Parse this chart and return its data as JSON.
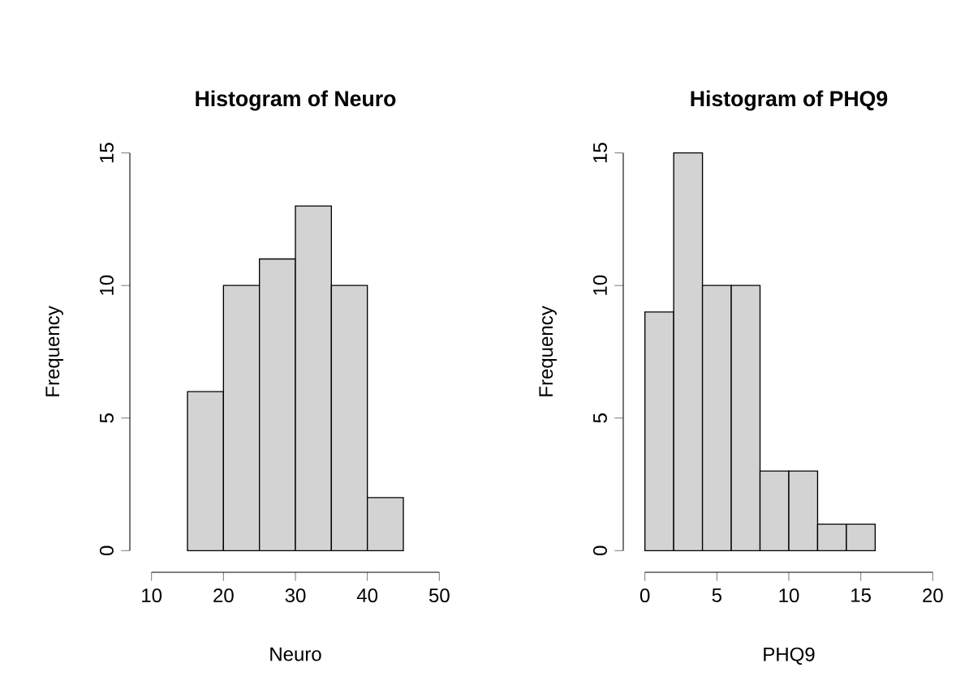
{
  "chart_data": [
    {
      "type": "histogram",
      "title": "Histogram of Neuro",
      "xlabel": "Neuro",
      "ylabel": "Frequency",
      "bins": [
        15,
        20,
        25,
        30,
        35,
        40,
        45
      ],
      "values": [
        6,
        10,
        11,
        13,
        10,
        2
      ],
      "color": "#d3d3d3",
      "xlim": [
        10,
        50
      ],
      "ylim": [
        0,
        15
      ],
      "xticks": [
        10,
        20,
        30,
        40,
        50
      ],
      "yticks": [
        0,
        5,
        10,
        15
      ],
      "grid": false
    },
    {
      "type": "histogram",
      "title": "Histogram of PHQ9",
      "xlabel": "PHQ9",
      "ylabel": "Frequency",
      "bins": [
        0,
        2,
        4,
        6,
        8,
        10,
        12,
        14,
        16
      ],
      "values": [
        9,
        15,
        10,
        10,
        3,
        3,
        1,
        1
      ],
      "color": "#d3d3d3",
      "xlim": [
        0,
        20
      ],
      "ylim": [
        0,
        15
      ],
      "xticks": [
        0,
        5,
        10,
        15,
        20
      ],
      "yticks": [
        0,
        5,
        10,
        15
      ],
      "grid": false
    }
  ]
}
